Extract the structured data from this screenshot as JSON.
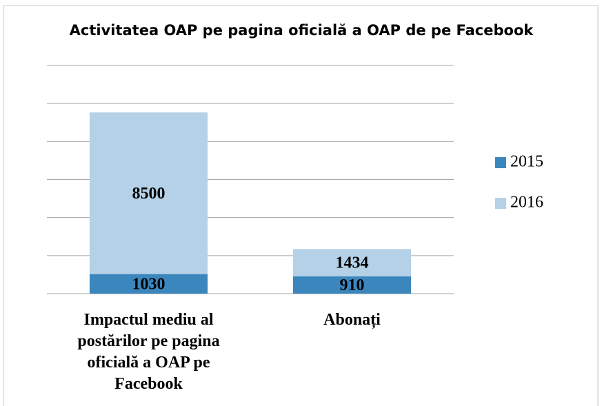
{
  "chart_data": {
    "type": "stacked_bar",
    "title": "Activitatea OAP pe pagina oficială a OAP de pe Facebook",
    "categories": [
      "Impactul mediu al postărilor pe pagina oficială a OAP pe Facebook",
      "Abonați"
    ],
    "series": [
      {
        "name": "2015",
        "color": "#3c86be",
        "values": [
          1030,
          910
        ]
      },
      {
        "name": "2016",
        "color": "#b4d1e7",
        "values": [
          8500,
          1434
        ]
      }
    ],
    "ylim": [
      0,
      12000
    ],
    "yticks": [
      0,
      2000,
      4000,
      6000,
      8000,
      10000,
      12000
    ],
    "grid": true,
    "legend": "right"
  }
}
